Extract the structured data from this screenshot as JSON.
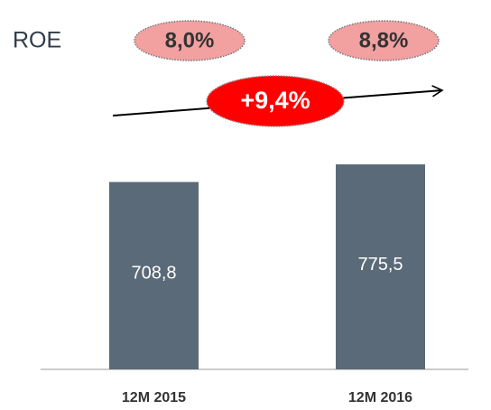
{
  "chart_data": {
    "type": "bar",
    "categories": [
      "12M 2015",
      "12M 2016"
    ],
    "values": [
      708.8,
      775.5
    ],
    "value_labels": [
      "708,8",
      "775,5"
    ],
    "color": "#5b6a78",
    "annotations": {
      "roe_label": "ROE",
      "roe_values": [
        "8,0%",
        "8,8%"
      ],
      "growth": "+9,4%"
    }
  }
}
